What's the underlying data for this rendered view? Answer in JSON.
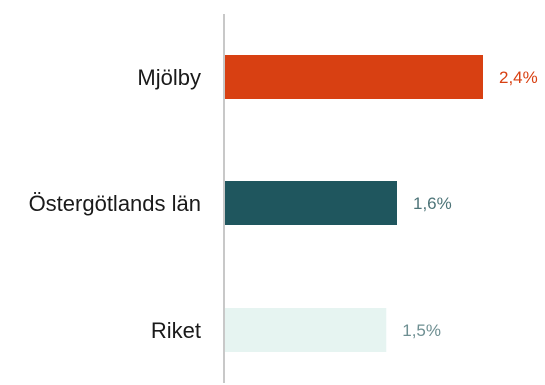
{
  "chart_data": {
    "type": "bar",
    "orientation": "horizontal",
    "categories": [
      "Mjölby",
      "Östergötlands län",
      "Riket"
    ],
    "values": [
      2.4,
      1.6,
      1.5
    ],
    "value_labels": [
      "2,4%",
      "1,6%",
      "1,5%"
    ],
    "bar_colors": [
      "#d84012",
      "#1f565e",
      "#e6f4f1"
    ],
    "label_colors": [
      "#d84012",
      "#4d7478",
      "#6e8f92"
    ],
    "axis_color": "#c8c8c8",
    "xlim": [
      0,
      2.4
    ],
    "grid": false,
    "legend": "none",
    "title": "",
    "xlabel": "",
    "ylabel": ""
  }
}
